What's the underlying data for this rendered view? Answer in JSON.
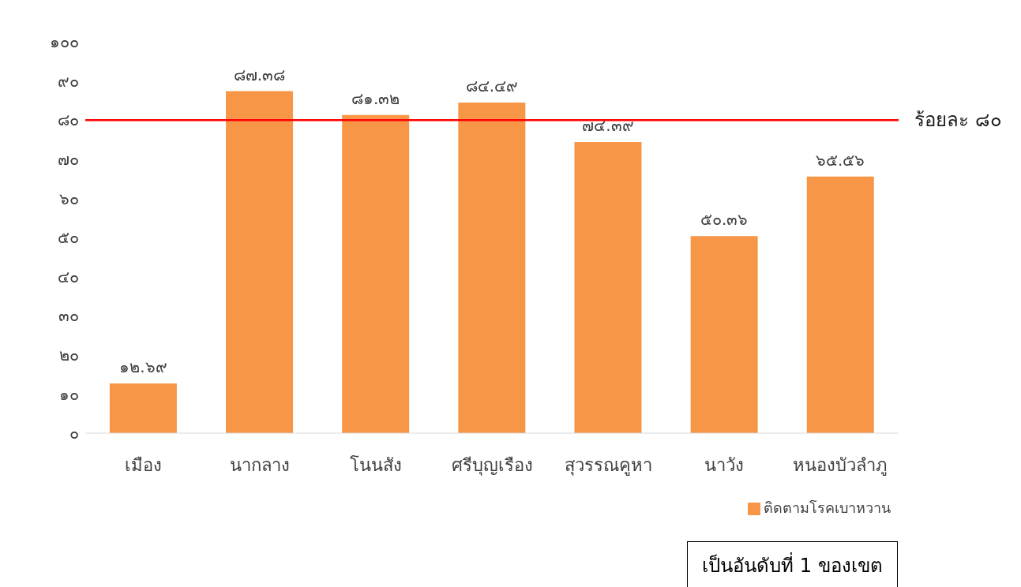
{
  "chart_data": {
    "type": "bar",
    "categories": [
      "เมือง",
      "นากลาง",
      "โนนสัง",
      "ศรีบุญเรือง",
      "สุวรรณคูหา",
      "นาวัง",
      "หนองบัวลำภู"
    ],
    "series": [
      {
        "name": "ติดตามโรคเบาหวาน",
        "color": "#f79646",
        "values": [
          12.69,
          87.38,
          81.32,
          84.49,
          74.39,
          50.36,
          65.56
        ],
        "value_labels": [
          "๑๒.๖๙",
          "๘๗.๓๘",
          "๘๑.๓๒",
          "๘๔.๔๙",
          "๗๔.๓๙",
          "๕๐.๓๖",
          "๖๕.๕๖"
        ]
      }
    ],
    "ylim": [
      0,
      100
    ],
    "yticks": [
      {
        "value": 0,
        "label": "๐"
      },
      {
        "value": 10,
        "label": "๑๐"
      },
      {
        "value": 20,
        "label": "๒๐"
      },
      {
        "value": 30,
        "label": "๓๐"
      },
      {
        "value": 40,
        "label": "๔๐"
      },
      {
        "value": 50,
        "label": "๕๐"
      },
      {
        "value": 60,
        "label": "๖๐"
      },
      {
        "value": 70,
        "label": "๗๐"
      },
      {
        "value": 80,
        "label": "๘๐"
      },
      {
        "value": 90,
        "label": "๙๐"
      },
      {
        "value": 100,
        "label": "๑๐๐"
      }
    ],
    "ref_lines": [
      {
        "axis": "y",
        "value": 80,
        "label": "ร้อยละ ๘๐",
        "color": "#ff0000"
      }
    ],
    "legend": "bottom right",
    "grid": false,
    "annotations": [
      "เป็นอันดับที่ 1 ของเขต"
    ]
  }
}
